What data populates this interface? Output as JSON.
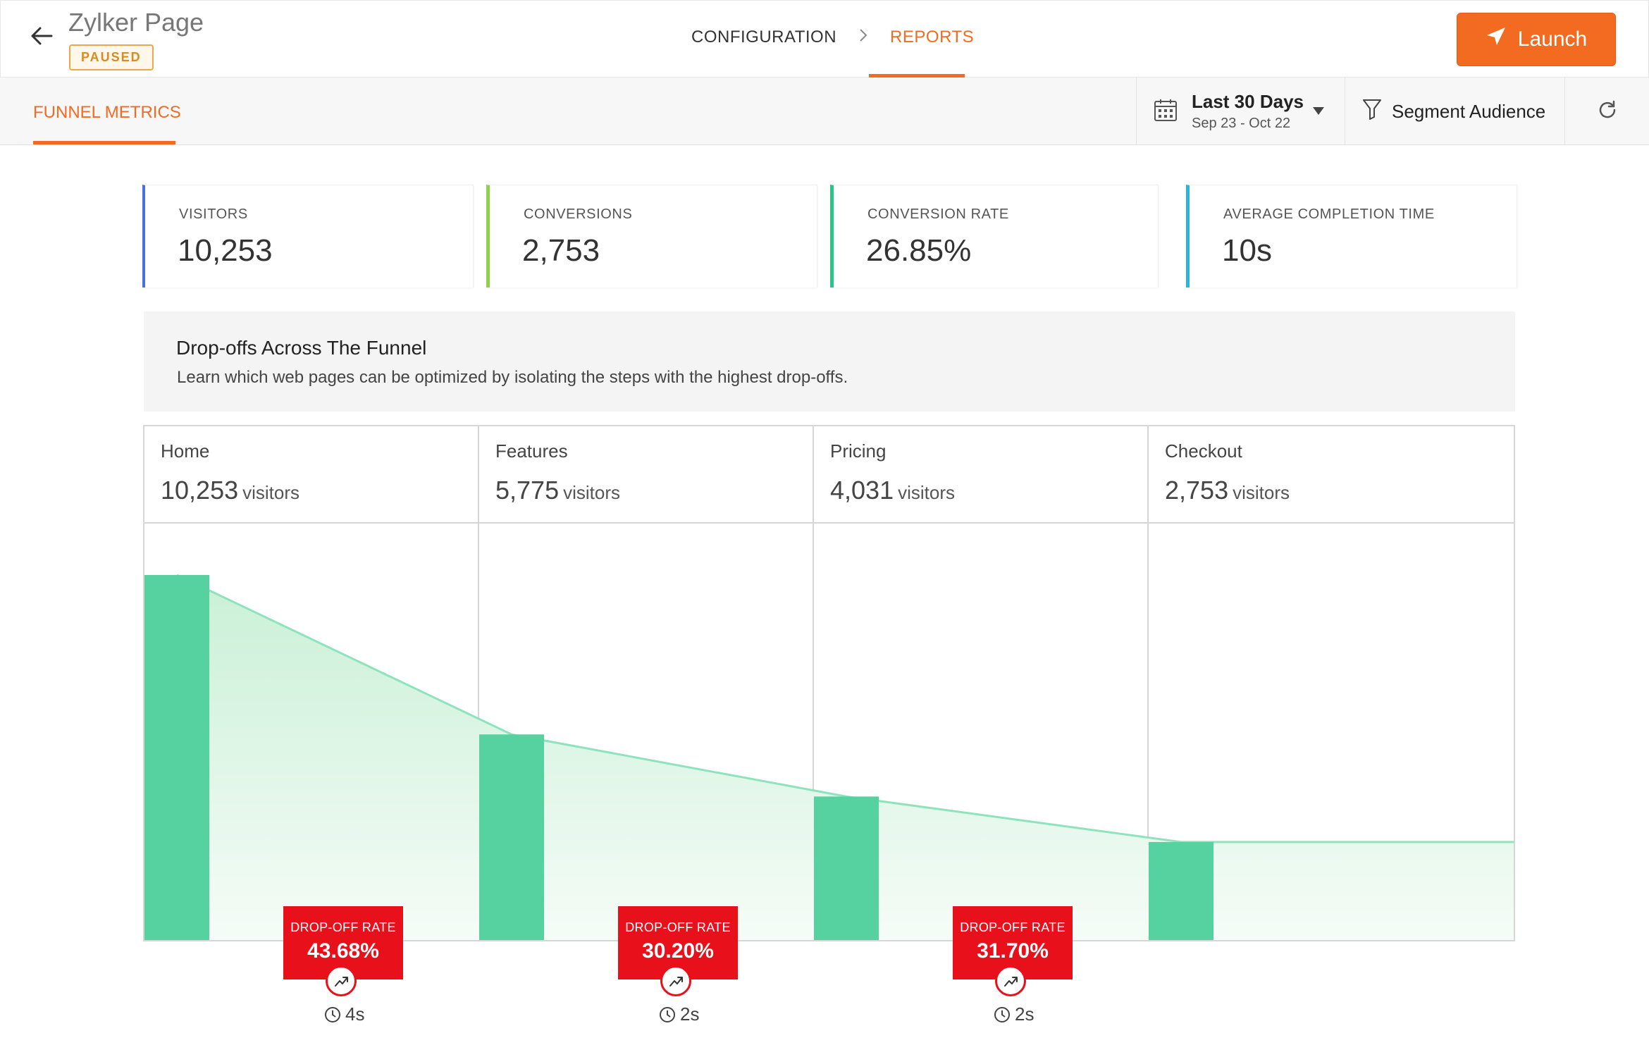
{
  "header": {
    "title": "Zylker Page",
    "status_badge": "PAUSED",
    "breadcrumb": [
      "CONFIGURATION",
      "REPORTS"
    ],
    "launch_label": "Launch"
  },
  "subheader": {
    "tab": "FUNNEL METRICS",
    "date_range_label": "Last 30 Days",
    "date_range_sub": "Sep 23 - Oct 22",
    "segment_label": "Segment Audience"
  },
  "metrics": [
    {
      "label": "VISITORS",
      "value": "10,253",
      "color": "#4a6ee0"
    },
    {
      "label": "CONVERSIONS",
      "value": "2,753",
      "color": "#8fd14f"
    },
    {
      "label": "CONVERSION RATE",
      "value": "26.85%",
      "color": "#2cc28a"
    },
    {
      "label": "AVERAGE COMPLETION TIME",
      "value": "10s",
      "color": "#2cb6d9"
    }
  ],
  "info": {
    "title": "Drop-offs Across The Funnel",
    "description": "Learn which web pages can be optimized by isolating the steps with the highest drop-offs."
  },
  "funnel": {
    "visitors_unit": "visitors",
    "steps": [
      {
        "name": "Home",
        "visitors": "10,253"
      },
      {
        "name": "Features",
        "visitors": "5,775"
      },
      {
        "name": "Pricing",
        "visitors": "4,031"
      },
      {
        "name": "Checkout",
        "visitors": "2,753"
      }
    ],
    "dropoffs": [
      {
        "label": "DROP-OFF RATE",
        "rate": "43.68%",
        "time": "4s"
      },
      {
        "label": "DROP-OFF RATE",
        "rate": "30.20%",
        "time": "2s"
      },
      {
        "label": "DROP-OFF RATE",
        "rate": "31.70%",
        "time": "2s"
      }
    ],
    "bar_color": "#55d2a0",
    "line_color": "#8ee3bd"
  }
}
